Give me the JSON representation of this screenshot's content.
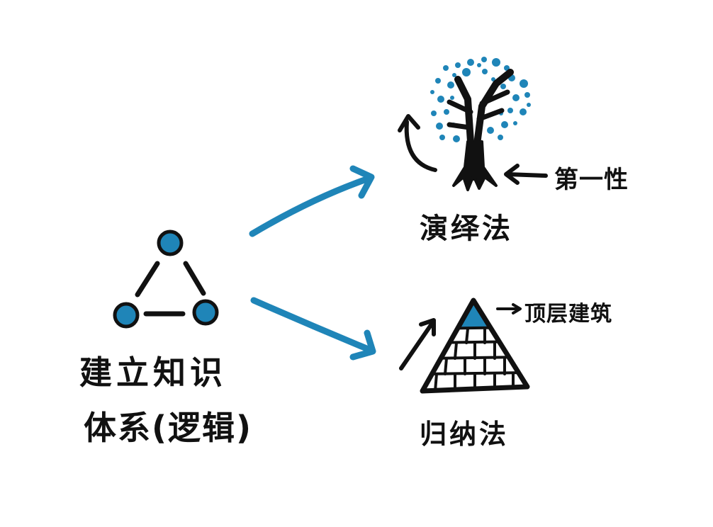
{
  "colors": {
    "ink": "#111111",
    "accent": "#1f85b8",
    "background": "#ffffff"
  },
  "left": {
    "title_line1": "建立知识",
    "title_line2": "体系(逻辑)",
    "icon": "three-node-triangle-icon"
  },
  "deduction": {
    "label": "演绎法",
    "annotation": "第一性",
    "icon": "tree-icon"
  },
  "induction": {
    "label": "归纳法",
    "annotation": "顶层建筑",
    "icon": "brick-pyramid-icon"
  }
}
